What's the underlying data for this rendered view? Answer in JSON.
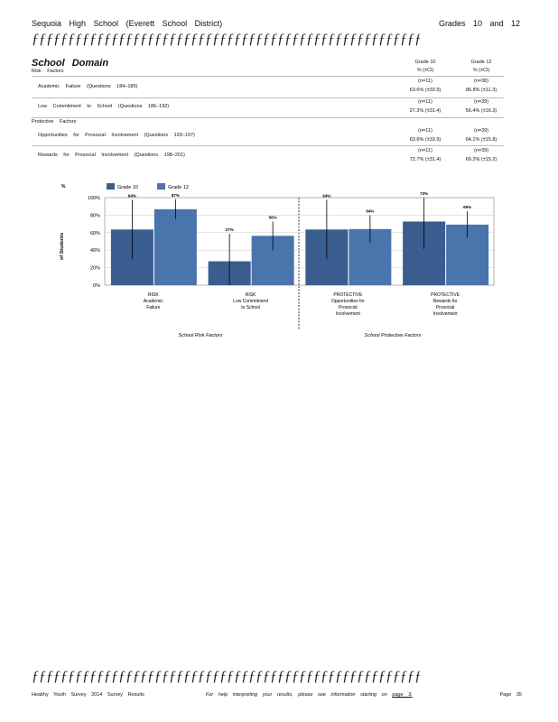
{
  "header": {
    "school": "Sequoia   High   School   (Everett   School   District)",
    "grades": "Grades   10   and   12",
    "decor_line": "ƒƒƒƒƒƒƒƒƒƒƒƒƒƒƒƒƒƒƒƒƒƒƒƒƒƒƒƒƒƒƒƒƒƒƒƒƒƒƒƒƒƒƒƒƒƒƒƒƒƒƒƒƒƒƒƒƒƒƒƒƒƒƒƒƒƒƒƒƒƒƒƒƒƒ"
  },
  "section": {
    "title": "School   Domain",
    "risk_label": "Risk   Factors",
    "protective_label": "Protective   Factors"
  },
  "columns": {
    "g10_title": "Grade   10",
    "g10_sub": "%   (±CI)",
    "g12_title": "Grade   12",
    "g12_sub": "%   (±CI)"
  },
  "rows": [
    {
      "label": "Academic   Failure   (Questions   184–185)",
      "g10_n": "(n=11)",
      "g10_val": "63.6%   (±33.9)",
      "g12_n": "(n=38)",
      "g12_val": "86.8%   (±11.3)"
    },
    {
      "label": "Low   Commitment   to   School   (Questions   186–192)",
      "g10_n": "(n=11)",
      "g10_val": "27.3%   (±31.4)",
      "g12_n": "(n=39)",
      "g12_val": "56.4%   (±16.3)"
    },
    {
      "label": "Opportunities   for   Prosocial   Involvement   (Questions   193–197)",
      "g10_n": "(n=11)",
      "g10_val": "63.6%   (±33.9)",
      "g12_n": "(n=39)",
      "g12_val": "64.1%   (±15.8)"
    },
    {
      "label": "Rewards   for   Prosocial   Involvement   (Questions   198–201)",
      "g10_n": "(n=11)",
      "g10_val": "72.7%   (±31.4)",
      "g12_n": "(n=39)",
      "g12_val": "69.2%   (±15.2)"
    }
  ],
  "chart_data": {
    "type": "bar",
    "ylabel_pct": "%",
    "ylabel": "of   Students",
    "ylim": [
      0,
      100
    ],
    "yticks": [
      "0%",
      "20%",
      "40%",
      "60%",
      "80%",
      "100%"
    ],
    "legend_position": "top-left",
    "series": [
      {
        "name": "Grade   10",
        "color": "#3a5d8f",
        "values": [
          63.6,
          27.3,
          63.6,
          72.7
        ],
        "ci": [
          33.9,
          31.4,
          33.9,
          31.4
        ],
        "labels": [
          "64%",
          "27%",
          "64%",
          "73%"
        ]
      },
      {
        "name": "Grade   12",
        "color": "#4a74ac",
        "values": [
          86.8,
          56.4,
          64.1,
          69.2
        ],
        "ci": [
          11.3,
          16.3,
          15.8,
          15.2
        ],
        "labels": [
          "87%",
          "56%",
          "64%",
          "69%"
        ]
      }
    ],
    "categories": [
      [
        "RISK",
        "Academic",
        "Failure"
      ],
      [
        "RISK",
        "Low   Commitment",
        "to   School"
      ],
      [
        "PROTECTIVE",
        "Opportunities   for",
        "Prosocial",
        "Involvement"
      ],
      [
        "PROTECTIVE",
        "Rewards   for",
        "Prosocial",
        "Involvement"
      ]
    ],
    "group_labels": [
      "School   Risk   Factors",
      "School   Protective   Factors"
    ]
  },
  "footer": {
    "left": "Healthy   Youth   Survey   2014   Survey   Results",
    "middle": "For   help   interpreting   your   results,   please   see   information   starting   on",
    "page_link": "page   3.",
    "page": "Page   35"
  }
}
